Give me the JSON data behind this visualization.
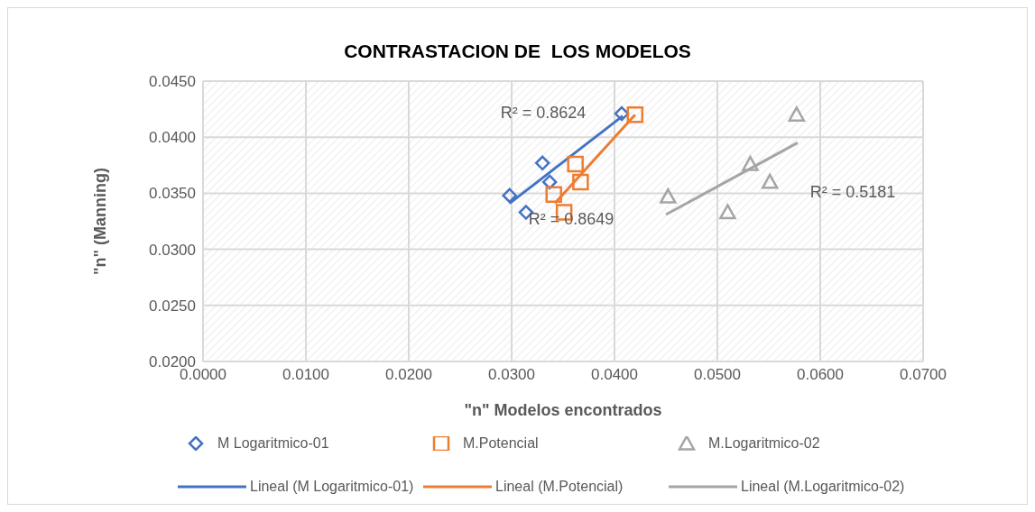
{
  "chart_data": {
    "type": "scatter",
    "title": "CONTRASTACION DE  LOS MODELOS",
    "xlabel": "\"n\" Modelos encontrados",
    "ylabel": "\"n\" (Manning)",
    "xlim": [
      0,
      0.07
    ],
    "ylim": [
      0.02,
      0.045
    ],
    "xticks": [
      {
        "value": 0,
        "label": "0.0000"
      },
      {
        "value": 0.01,
        "label": "0.0100"
      },
      {
        "value": 0.02,
        "label": "0.0200"
      },
      {
        "value": 0.03,
        "label": "0.0300"
      },
      {
        "value": 0.04,
        "label": "0.0400"
      },
      {
        "value": 0.05,
        "label": "0.0500"
      },
      {
        "value": 0.06,
        "label": "0.0600"
      },
      {
        "value": 0.07,
        "label": "0.0700"
      }
    ],
    "yticks": [
      {
        "value": 0.02,
        "label": "0.0200"
      },
      {
        "value": 0.025,
        "label": "0.0250"
      },
      {
        "value": 0.03,
        "label": "0.0300"
      },
      {
        "value": 0.035,
        "label": "0.0350"
      },
      {
        "value": 0.04,
        "label": "0.0400"
      },
      {
        "value": 0.045,
        "label": "0.0450"
      }
    ],
    "grid": true,
    "legend": "bottom",
    "series": [
      {
        "name": "M Logaritmico-01",
        "marker": "diamond",
        "color": "#4472c4",
        "x": [
          0.0298,
          0.0314,
          0.033,
          0.0337,
          0.0407
        ],
        "values": [
          0.0348,
          0.0333,
          0.0377,
          0.036,
          0.0421
        ]
      },
      {
        "name": "M.Potencial",
        "marker": "square",
        "color": "#ed7d31",
        "x": [
          0.0341,
          0.0351,
          0.0362,
          0.0367,
          0.042
        ],
        "values": [
          0.0349,
          0.0333,
          0.0376,
          0.036,
          0.042
        ]
      },
      {
        "name": "M.Logaritmico-02",
        "marker": "triangle",
        "color": "#a5a5a5",
        "x": [
          0.0452,
          0.051,
          0.0532,
          0.0551,
          0.0577
        ],
        "values": [
          0.0347,
          0.0333,
          0.0376,
          0.036,
          0.042
        ]
      },
      {
        "name": "Lineal (M Logaritmico-01)",
        "type": "line",
        "marker": "none",
        "color": "#4472c4",
        "x": [
          0.0298,
          0.0408
        ],
        "values": [
          0.0341,
          0.0419
        ]
      },
      {
        "name": "Lineal (M.Potencial)",
        "type": "line",
        "marker": "none",
        "color": "#ed7d31",
        "x": [
          0.0342,
          0.042
        ],
        "values": [
          0.0341,
          0.042
        ]
      },
      {
        "name": "Lineal (M.Logaritmico-02)",
        "type": "line",
        "marker": "none",
        "color": "#a5a5a5",
        "x": [
          0.045,
          0.0578
        ],
        "values": [
          0.0331,
          0.0395
        ]
      }
    ],
    "annotations": [
      "R² = 0.8624",
      "R² = 0.8649",
      "R² = 0.5181"
    ]
  }
}
